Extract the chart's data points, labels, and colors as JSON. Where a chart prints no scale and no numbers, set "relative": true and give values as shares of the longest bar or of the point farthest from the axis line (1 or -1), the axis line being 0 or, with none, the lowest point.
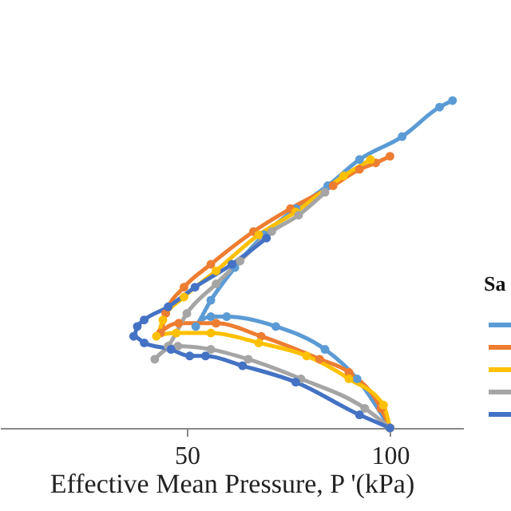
{
  "chart_data": {
    "type": "line",
    "xlabel": "Effective Mean Pressure, P '(kPa)",
    "annotations": [
      "Sa"
    ],
    "marker": "circle",
    "line_style": "solid",
    "relative": true,
    "xlim": [
      4,
      118
    ],
    "xticks": [
      50,
      100
    ],
    "grid": false,
    "series": [
      {
        "color": "#5b9bd5",
        "x": [
          100.0,
          91.9,
          84.0,
          71.9,
          59.8,
          55.9,
          52.2,
          55.9,
          61.8,
          69.0,
          76.8,
          84.7,
          92.5,
          103.0,
          112.2,
          115.4
        ],
        "values": [
          0,
          0.15,
          0.24,
          0.31,
          0.34,
          0.34,
          0.31,
          0.39,
          0.49,
          0.59,
          0.67,
          0.74,
          0.82,
          0.89,
          0.98,
          1
        ]
      },
      {
        "color": "#ed7d31",
        "x": [
          100.0,
          97.8,
          89.9,
          82.7,
          68.3,
          57.2,
          48.0,
          43.5,
          44.8,
          49.3,
          55.9,
          66.4,
          75.5,
          86.0,
          92.5,
          96.5,
          100.0
        ],
        "values": [
          0,
          0.06,
          0.17,
          0.21,
          0.28,
          0.32,
          0.32,
          0.29,
          0.35,
          0.43,
          0.5,
          0.6,
          0.67,
          0.74,
          0.79,
          0.81,
          0.83
        ]
      },
      {
        "color": "#ffc000",
        "x": [
          100.0,
          98.4,
          89.9,
          79.5,
          67.7,
          55.9,
          47.4,
          42.5,
          44.1,
          49.3,
          57.2,
          67.7,
          76.8,
          88.6,
          95.2
        ],
        "values": [
          0,
          0.07,
          0.15,
          0.22,
          0.26,
          0.29,
          0.29,
          0.28,
          0.33,
          0.4,
          0.48,
          0.59,
          0.66,
          0.77,
          0.82
        ]
      },
      {
        "color": "#a5a5a5",
        "x": [
          100.0,
          93.8,
          78.1,
          65.1,
          55.9,
          47.8,
          42.1,
          45.4,
          50.0,
          57.2,
          63.1,
          70.9,
          77.5,
          84.0
        ],
        "values": [
          0,
          0.06,
          0.15,
          0.21,
          0.24,
          0.25,
          0.21,
          0.25,
          0.35,
          0.44,
          0.51,
          0.6,
          0.65,
          0.72
        ]
      },
      {
        "color": "#4472c4",
        "x": [
          100.0,
          92.5,
          76.8,
          63.7,
          54.6,
          50.7,
          46.1,
          39.5,
          36.9,
          37.8,
          39.5,
          45.4,
          52.0,
          61.1,
          69.6
        ],
        "values": [
          0,
          0.04,
          0.14,
          0.19,
          0.22,
          0.22,
          0.24,
          0.26,
          0.28,
          0.31,
          0.33,
          0.37,
          0.43,
          0.5,
          0.58
        ]
      }
    ]
  }
}
